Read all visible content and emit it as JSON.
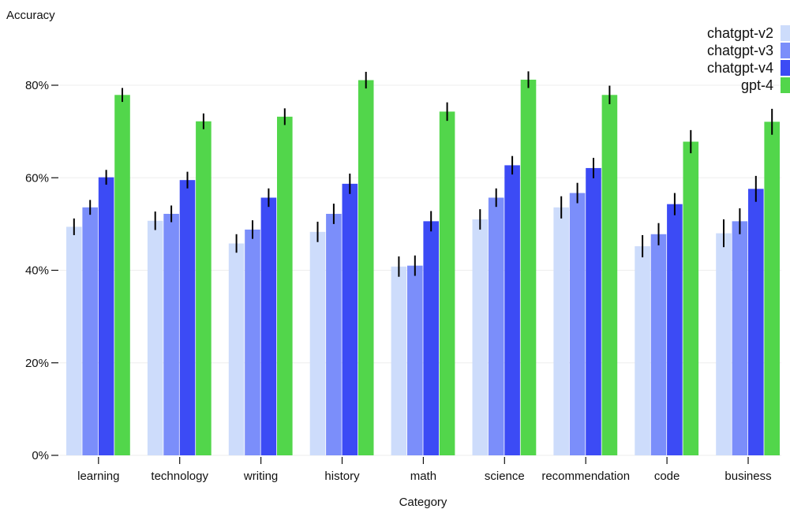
{
  "chart_data": {
    "type": "bar",
    "xlabel": "Category",
    "ylabel": "Accuracy",
    "ylim": [
      0,
      0.88
    ],
    "yticks": [
      0,
      0.2,
      0.4,
      0.6,
      0.8
    ],
    "ytick_labels": [
      "0%",
      "20%",
      "40%",
      "60%",
      "80%"
    ],
    "grid": true,
    "legend_position": "top-right",
    "categories": [
      "learning",
      "technology",
      "writing",
      "history",
      "math",
      "science",
      "recommendation",
      "code",
      "business"
    ],
    "series": [
      {
        "name": "chatgpt-v2",
        "color": "#cddcfb",
        "values": [
          0.494,
          0.507,
          0.458,
          0.483,
          0.408,
          0.51,
          0.536,
          0.452,
          0.48
        ],
        "errors": [
          0.018,
          0.02,
          0.02,
          0.022,
          0.022,
          0.022,
          0.024,
          0.024,
          0.03
        ]
      },
      {
        "name": "chatgpt-v3",
        "color": "#7b8efa",
        "values": [
          0.536,
          0.522,
          0.488,
          0.522,
          0.41,
          0.557,
          0.567,
          0.478,
          0.506
        ],
        "errors": [
          0.016,
          0.018,
          0.02,
          0.022,
          0.022,
          0.02,
          0.022,
          0.024,
          0.028
        ]
      },
      {
        "name": "chatgpt-v4",
        "color": "#3c4bf5",
        "values": [
          0.601,
          0.595,
          0.557,
          0.587,
          0.506,
          0.627,
          0.621,
          0.543,
          0.576
        ],
        "errors": [
          0.016,
          0.018,
          0.02,
          0.022,
          0.022,
          0.02,
          0.022,
          0.024,
          0.028
        ]
      },
      {
        "name": "gpt-4",
        "color": "#52d64b",
        "values": [
          0.779,
          0.722,
          0.732,
          0.811,
          0.743,
          0.812,
          0.779,
          0.678,
          0.721
        ],
        "errors": [
          0.015,
          0.017,
          0.018,
          0.018,
          0.02,
          0.018,
          0.02,
          0.025,
          0.028
        ]
      }
    ]
  }
}
